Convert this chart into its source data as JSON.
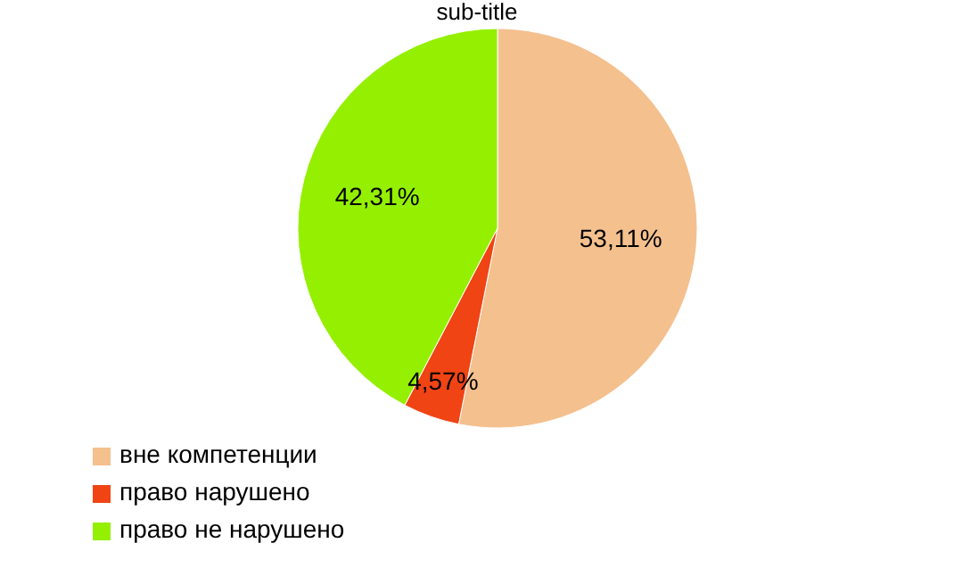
{
  "chart_data": {
    "type": "pie",
    "subtitle": "sub-title",
    "categories": [
      "вне компетенции",
      "право нарушено",
      "право не нарушено"
    ],
    "values": [
      53.11,
      4.57,
      42.31
    ],
    "value_labels": [
      "53,11%",
      "4,57%",
      "42,31%"
    ],
    "colors": [
      "#f4c08e",
      "#f04414",
      "#94f000"
    ],
    "legend": "bottom left"
  }
}
